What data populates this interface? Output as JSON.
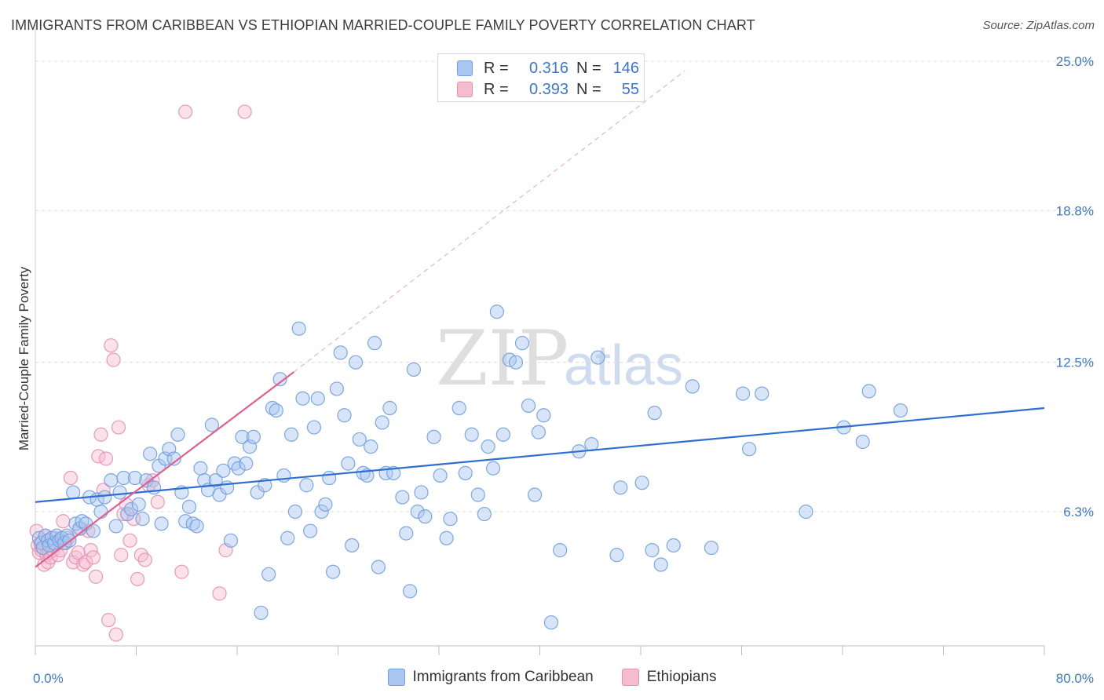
{
  "header": {
    "title": "IMMIGRANTS FROM CARIBBEAN VS ETHIOPIAN MARRIED-COUPLE FAMILY POVERTY CORRELATION CHART",
    "source": "Source: ZipAtlas.com"
  },
  "colors": {
    "blue": "#6f9fe0",
    "blue_fill": "#a9c6f0",
    "blue_line": "#2e6fcf",
    "pink": "#e890b0",
    "pink_fill": "#f5bcd0",
    "pink_line": "#e0608e",
    "axis_label": "#3c78d0"
  },
  "legend": {
    "r_label": "R =",
    "n_label": "N =",
    "items": [
      {
        "r": "0.316",
        "n": "146"
      },
      {
        "r": "0.393",
        "n": "55"
      }
    ]
  },
  "watermark": {
    "zip": "ZIP",
    "atlas": "atlas"
  },
  "chart_data": {
    "type": "scatter",
    "title": "IMMIGRANTS FROM CARIBBEAN VS ETHIOPIAN MARRIED-COUPLE FAMILY POVERTY CORRELATION CHART",
    "xlabel": "",
    "ylabel": "Married-Couple Family Poverty",
    "xlim": [
      0,
      80
    ],
    "ylim": [
      0,
      26.5
    ],
    "x_tick_labels": [
      "0.0%",
      "80.0%"
    ],
    "y_ticks": [
      6.3,
      12.5,
      18.8,
      25.0
    ],
    "y_tick_labels": [
      "6.3%",
      "12.5%",
      "18.8%",
      "25.0%"
    ],
    "legend_position": "bottom",
    "series": [
      {
        "name": "Immigrants from Caribbean",
        "r": 0.316,
        "n": 146,
        "trend": {
          "x": [
            0,
            80
          ],
          "y": [
            6.7,
            10.6
          ]
        },
        "points": [
          [
            0.3,
            5.2
          ],
          [
            0.5,
            5.0
          ],
          [
            0.6,
            4.8
          ],
          [
            0.8,
            5.3
          ],
          [
            1.0,
            5.1
          ],
          [
            1.1,
            4.9
          ],
          [
            1.3,
            5.2
          ],
          [
            1.5,
            5.0
          ],
          [
            1.7,
            5.3
          ],
          [
            1.9,
            5.1
          ],
          [
            2.1,
            5.2
          ],
          [
            2.3,
            5.0
          ],
          [
            2.5,
            5.3
          ],
          [
            2.7,
            5.1
          ],
          [
            3.0,
            7.1
          ],
          [
            3.2,
            5.8
          ],
          [
            3.5,
            5.6
          ],
          [
            3.7,
            5.9
          ],
          [
            4.0,
            5.8
          ],
          [
            4.3,
            6.9
          ],
          [
            4.6,
            5.5
          ],
          [
            4.9,
            6.8
          ],
          [
            5.2,
            6.3
          ],
          [
            5.5,
            6.9
          ],
          [
            6.0,
            7.6
          ],
          [
            6.4,
            5.7
          ],
          [
            6.7,
            7.1
          ],
          [
            7.0,
            7.7
          ],
          [
            7.3,
            6.2
          ],
          [
            7.6,
            6.4
          ],
          [
            7.9,
            7.7
          ],
          [
            8.2,
            6.6
          ],
          [
            8.5,
            6.0
          ],
          [
            8.8,
            7.6
          ],
          [
            9.1,
            8.7
          ],
          [
            9.4,
            7.3
          ],
          [
            9.8,
            8.2
          ],
          [
            10.0,
            5.8
          ],
          [
            10.3,
            8.5
          ],
          [
            10.6,
            8.9
          ],
          [
            11.0,
            8.5
          ],
          [
            11.3,
            9.5
          ],
          [
            11.6,
            7.1
          ],
          [
            11.9,
            5.9
          ],
          [
            12.2,
            6.5
          ],
          [
            12.5,
            5.8
          ],
          [
            12.8,
            5.7
          ],
          [
            13.1,
            8.1
          ],
          [
            13.4,
            7.6
          ],
          [
            13.7,
            7.2
          ],
          [
            14.0,
            9.9
          ],
          [
            14.3,
            7.6
          ],
          [
            14.6,
            7.0
          ],
          [
            14.9,
            8.0
          ],
          [
            15.2,
            7.3
          ],
          [
            15.5,
            5.1
          ],
          [
            15.8,
            8.3
          ],
          [
            16.1,
            8.1
          ],
          [
            16.4,
            9.4
          ],
          [
            16.7,
            8.3
          ],
          [
            17.0,
            9.0
          ],
          [
            17.3,
            9.4
          ],
          [
            17.6,
            7.1
          ],
          [
            17.9,
            2.1
          ],
          [
            18.2,
            7.4
          ],
          [
            18.5,
            3.7
          ],
          [
            18.8,
            10.6
          ],
          [
            19.1,
            10.5
          ],
          [
            19.4,
            11.8
          ],
          [
            19.7,
            7.8
          ],
          [
            20.0,
            5.2
          ],
          [
            20.3,
            9.5
          ],
          [
            20.6,
            6.3
          ],
          [
            20.9,
            13.9
          ],
          [
            21.2,
            11.0
          ],
          [
            21.5,
            7.4
          ],
          [
            21.8,
            5.5
          ],
          [
            22.1,
            9.8
          ],
          [
            22.4,
            11.0
          ],
          [
            22.7,
            6.3
          ],
          [
            23.0,
            6.6
          ],
          [
            23.3,
            7.7
          ],
          [
            23.6,
            3.8
          ],
          [
            23.9,
            11.4
          ],
          [
            24.2,
            12.9
          ],
          [
            24.5,
            10.3
          ],
          [
            24.8,
            8.3
          ],
          [
            25.1,
            4.9
          ],
          [
            25.4,
            12.5
          ],
          [
            25.7,
            9.3
          ],
          [
            26.0,
            7.9
          ],
          [
            26.3,
            7.8
          ],
          [
            26.6,
            9.0
          ],
          [
            26.9,
            13.3
          ],
          [
            27.2,
            4.0
          ],
          [
            27.5,
            10.0
          ],
          [
            27.8,
            7.9
          ],
          [
            28.1,
            10.6
          ],
          [
            28.4,
            7.9
          ],
          [
            29.1,
            6.9
          ],
          [
            29.4,
            5.4
          ],
          [
            29.7,
            3.0
          ],
          [
            30.0,
            12.2
          ],
          [
            30.3,
            6.3
          ],
          [
            30.6,
            7.1
          ],
          [
            30.9,
            6.1
          ],
          [
            31.6,
            9.4
          ],
          [
            32.1,
            7.8
          ],
          [
            32.6,
            5.2
          ],
          [
            32.9,
            6.0
          ],
          [
            33.6,
            10.6
          ],
          [
            34.1,
            7.9
          ],
          [
            34.6,
            9.5
          ],
          [
            35.1,
            7.0
          ],
          [
            35.6,
            6.2
          ],
          [
            35.9,
            9.0
          ],
          [
            36.3,
            8.1
          ],
          [
            36.6,
            14.6
          ],
          [
            37.1,
            9.5
          ],
          [
            37.6,
            12.6
          ],
          [
            38.1,
            12.5
          ],
          [
            38.6,
            13.3
          ],
          [
            39.1,
            10.7
          ],
          [
            39.6,
            7.0
          ],
          [
            39.9,
            9.6
          ],
          [
            40.3,
            10.3
          ],
          [
            40.9,
            1.7
          ],
          [
            41.6,
            4.7
          ],
          [
            43.1,
            8.8
          ],
          [
            44.1,
            9.1
          ],
          [
            44.6,
            12.7
          ],
          [
            46.1,
            4.5
          ],
          [
            46.4,
            7.3
          ],
          [
            48.1,
            7.5
          ],
          [
            48.9,
            4.7
          ],
          [
            49.1,
            10.4
          ],
          [
            49.6,
            4.1
          ],
          [
            50.6,
            4.9
          ],
          [
            52.1,
            11.5
          ],
          [
            53.6,
            4.8
          ],
          [
            56.1,
            11.2
          ],
          [
            56.6,
            8.9
          ],
          [
            57.6,
            11.2
          ],
          [
            61.1,
            6.3
          ],
          [
            64.1,
            9.8
          ],
          [
            65.6,
            9.2
          ],
          [
            66.1,
            11.3
          ],
          [
            68.6,
            10.5
          ]
        ]
      },
      {
        "name": "Ethiopians",
        "r": 0.393,
        "n": 55,
        "trend": {
          "x": [
            0,
            20.5
          ],
          "y": [
            4.0,
            12.1
          ]
        },
        "trend_ext": {
          "x": [
            20.5,
            51.5
          ],
          "y": [
            12.1,
            24.6
          ]
        },
        "points": [
          [
            0.1,
            5.5
          ],
          [
            0.2,
            4.9
          ],
          [
            0.3,
            4.6
          ],
          [
            0.4,
            5.0
          ],
          [
            0.5,
            4.7
          ],
          [
            0.6,
            4.8
          ],
          [
            0.7,
            4.1
          ],
          [
            0.8,
            5.3
          ],
          [
            0.9,
            4.5
          ],
          [
            1.0,
            4.2
          ],
          [
            1.1,
            4.6
          ],
          [
            1.2,
            4.4
          ],
          [
            1.4,
            4.7
          ],
          [
            1.5,
            5.2
          ],
          [
            1.6,
            4.9
          ],
          [
            1.8,
            4.5
          ],
          [
            2.0,
            4.7
          ],
          [
            2.2,
            5.9
          ],
          [
            2.4,
            5.0
          ],
          [
            2.6,
            5.2
          ],
          [
            2.8,
            7.7
          ],
          [
            3.0,
            4.2
          ],
          [
            3.2,
            4.4
          ],
          [
            3.4,
            4.6
          ],
          [
            3.6,
            5.6
          ],
          [
            3.8,
            4.1
          ],
          [
            4.0,
            4.2
          ],
          [
            4.2,
            5.5
          ],
          [
            4.4,
            4.7
          ],
          [
            4.6,
            4.4
          ],
          [
            4.8,
            3.6
          ],
          [
            5.0,
            8.6
          ],
          [
            5.2,
            9.5
          ],
          [
            5.4,
            7.2
          ],
          [
            5.6,
            8.5
          ],
          [
            5.8,
            1.8
          ],
          [
            6.0,
            13.2
          ],
          [
            6.2,
            12.6
          ],
          [
            6.4,
            1.2
          ],
          [
            6.6,
            9.8
          ],
          [
            6.8,
            4.5
          ],
          [
            7.0,
            6.2
          ],
          [
            7.2,
            6.6
          ],
          [
            7.5,
            5.1
          ],
          [
            7.8,
            6.0
          ],
          [
            8.1,
            3.5
          ],
          [
            8.4,
            4.5
          ],
          [
            8.7,
            4.3
          ],
          [
            9.0,
            7.4
          ],
          [
            9.3,
            7.6
          ],
          [
            9.7,
            6.7
          ],
          [
            11.6,
            3.8
          ],
          [
            11.9,
            22.9
          ],
          [
            14.6,
            2.9
          ],
          [
            15.1,
            4.7
          ],
          [
            16.6,
            22.9
          ]
        ]
      }
    ]
  }
}
